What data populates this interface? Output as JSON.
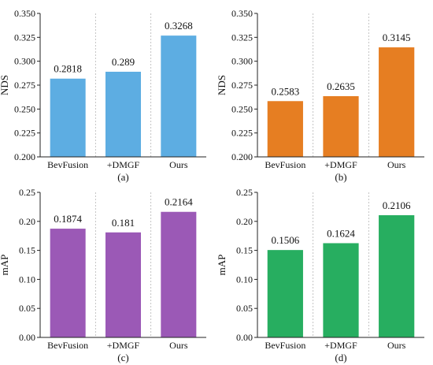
{
  "chart_data": [
    {
      "type": "bar",
      "panel_label": "(a)",
      "ylabel": "NDS",
      "categories": [
        "BevFusion",
        "+DMGF",
        "Ours"
      ],
      "values": [
        0.2818,
        0.289,
        0.3268
      ],
      "value_labels": [
        "0.2818",
        "0.289",
        "0.3268"
      ],
      "ylim": [
        0.2,
        0.35
      ],
      "yticks": [
        "0.200",
        "0.225",
        "0.250",
        "0.275",
        "0.300",
        "0.325",
        "0.350"
      ],
      "color": "#5DADE2",
      "grid": "vertical dotted separators between categories",
      "legend": "none"
    },
    {
      "type": "bar",
      "panel_label": "(b)",
      "ylabel": "NDS",
      "categories": [
        "BevFusion",
        "+DMGF",
        "Ours"
      ],
      "values": [
        0.2583,
        0.2635,
        0.3145
      ],
      "value_labels": [
        "0.2583",
        "0.2635",
        "0.3145"
      ],
      "ylim": [
        0.2,
        0.35
      ],
      "yticks": [
        "0.200",
        "0.225",
        "0.250",
        "0.275",
        "0.300",
        "0.325",
        "0.350"
      ],
      "color": "#E67E22",
      "grid": "vertical dotted separators between categories",
      "legend": "none"
    },
    {
      "type": "bar",
      "panel_label": "(c)",
      "ylabel": "mAP",
      "categories": [
        "BevFusion",
        "+DMGF",
        "Ours"
      ],
      "values": [
        0.1874,
        0.181,
        0.2164
      ],
      "value_labels": [
        "0.1874",
        "0.181",
        "0.2164"
      ],
      "ylim": [
        0.0,
        0.25
      ],
      "yticks": [
        "0.00",
        "0.05",
        "0.10",
        "0.15",
        "0.20",
        "0.25"
      ],
      "color": "#9B59B6",
      "grid": "vertical dotted separators between categories",
      "legend": "none"
    },
    {
      "type": "bar",
      "panel_label": "(d)",
      "ylabel": "mAP",
      "categories": [
        "BevFusion",
        "+DMGF",
        "Ours"
      ],
      "values": [
        0.1506,
        0.1624,
        0.2106
      ],
      "value_labels": [
        "0.1506",
        "0.1624",
        "0.2106"
      ],
      "ylim": [
        0.0,
        0.25
      ],
      "yticks": [
        "0.00",
        "0.05",
        "0.10",
        "0.15",
        "0.20",
        "0.25"
      ],
      "color": "#27AE60",
      "grid": "vertical dotted separators between categories",
      "legend": "none"
    }
  ]
}
